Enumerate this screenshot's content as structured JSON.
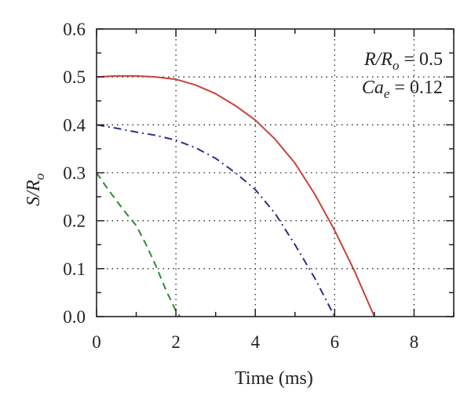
{
  "chart_data": {
    "type": "line",
    "xlabel": "Time (ms)",
    "ylabel": {
      "main": "S/R",
      "sub": "o"
    },
    "xlim": [
      0,
      9
    ],
    "ylim": [
      0.0,
      0.6
    ],
    "xticks": [
      0,
      2,
      4,
      6,
      8
    ],
    "yticks": [
      0.0,
      0.1,
      0.2,
      0.3,
      0.4,
      0.5,
      0.6
    ],
    "xtick_labels": [
      "0",
      "2",
      "4",
      "6",
      "8"
    ],
    "ytick_labels": [
      "0.0",
      "0.1",
      "0.2",
      "0.3",
      "0.4",
      "0.5",
      "0.6"
    ],
    "grid": true,
    "annotations": [
      {
        "lhs_main": "R/R",
        "lhs_sub": "o",
        "rhs": " = 0.5"
      },
      {
        "lhs_main": "Ca",
        "lhs_sub": "e",
        "rhs": " = 0.12"
      }
    ],
    "series": [
      {
        "color": "#c8423a",
        "style": "solid",
        "x": [
          0.0,
          0.5,
          1.0,
          1.5,
          2.0,
          2.5,
          3.0,
          3.5,
          4.0,
          4.5,
          5.0,
          5.5,
          6.0,
          6.5,
          7.0
        ],
        "y": [
          0.5,
          0.502,
          0.502,
          0.5,
          0.495,
          0.483,
          0.465,
          0.44,
          0.41,
          0.37,
          0.32,
          0.255,
          0.18,
          0.095,
          0.0
        ]
      },
      {
        "color": "#2b2f8a",
        "style": "dashdot",
        "x": [
          0.0,
          0.5,
          1.0,
          1.5,
          2.0,
          2.5,
          3.0,
          3.5,
          4.0,
          4.5,
          5.0,
          5.5,
          6.0
        ],
        "y": [
          0.4,
          0.393,
          0.385,
          0.378,
          0.368,
          0.352,
          0.33,
          0.3,
          0.265,
          0.215,
          0.15,
          0.08,
          0.0
        ]
      },
      {
        "color": "#2e8b2e",
        "style": "dashed",
        "x": [
          0.0,
          0.25,
          0.5,
          0.75,
          1.0,
          1.25,
          1.5,
          1.75,
          2.0,
          2.1
        ],
        "y": [
          0.3,
          0.27,
          0.242,
          0.215,
          0.19,
          0.15,
          0.105,
          0.055,
          0.012,
          0.0
        ]
      }
    ]
  }
}
